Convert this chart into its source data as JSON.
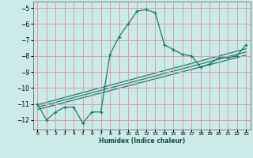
{
  "title": "",
  "xlabel": "Humidex (Indice chaleur)",
  "ylabel": "",
  "background_color": "#cceae8",
  "grid_color": "#d4a0a8",
  "line_color": "#1a7a6e",
  "xlim": [
    -0.5,
    23.5
  ],
  "ylim": [
    -12.6,
    -4.6
  ],
  "xticks": [
    0,
    1,
    2,
    3,
    4,
    5,
    6,
    7,
    8,
    9,
    10,
    11,
    12,
    13,
    14,
    15,
    16,
    17,
    18,
    19,
    20,
    21,
    22,
    23
  ],
  "yticks": [
    -12,
    -11,
    -10,
    -9,
    -8,
    -7,
    -6,
    -5
  ],
  "main_x": [
    0,
    1,
    2,
    3,
    4,
    5,
    6,
    7,
    8,
    9,
    10,
    11,
    12,
    13,
    14,
    15,
    16,
    17,
    18,
    19,
    20,
    21,
    22,
    23
  ],
  "main_y": [
    -11.0,
    -12.0,
    -11.5,
    -11.2,
    -11.2,
    -12.2,
    -11.5,
    -11.5,
    -7.9,
    -6.8,
    -6.0,
    -5.2,
    -5.1,
    -5.3,
    -7.3,
    -7.6,
    -7.9,
    -8.0,
    -8.7,
    -8.5,
    -8.1,
    -8.1,
    -8.0,
    -7.3
  ],
  "line2_x": [
    0,
    23
  ],
  "line2_y": [
    -11.05,
    -7.55
  ],
  "line3_x": [
    0,
    23
  ],
  "line3_y": [
    -11.2,
    -7.75
  ],
  "line4_x": [
    0,
    23
  ],
  "line4_y": [
    -11.35,
    -7.95
  ]
}
